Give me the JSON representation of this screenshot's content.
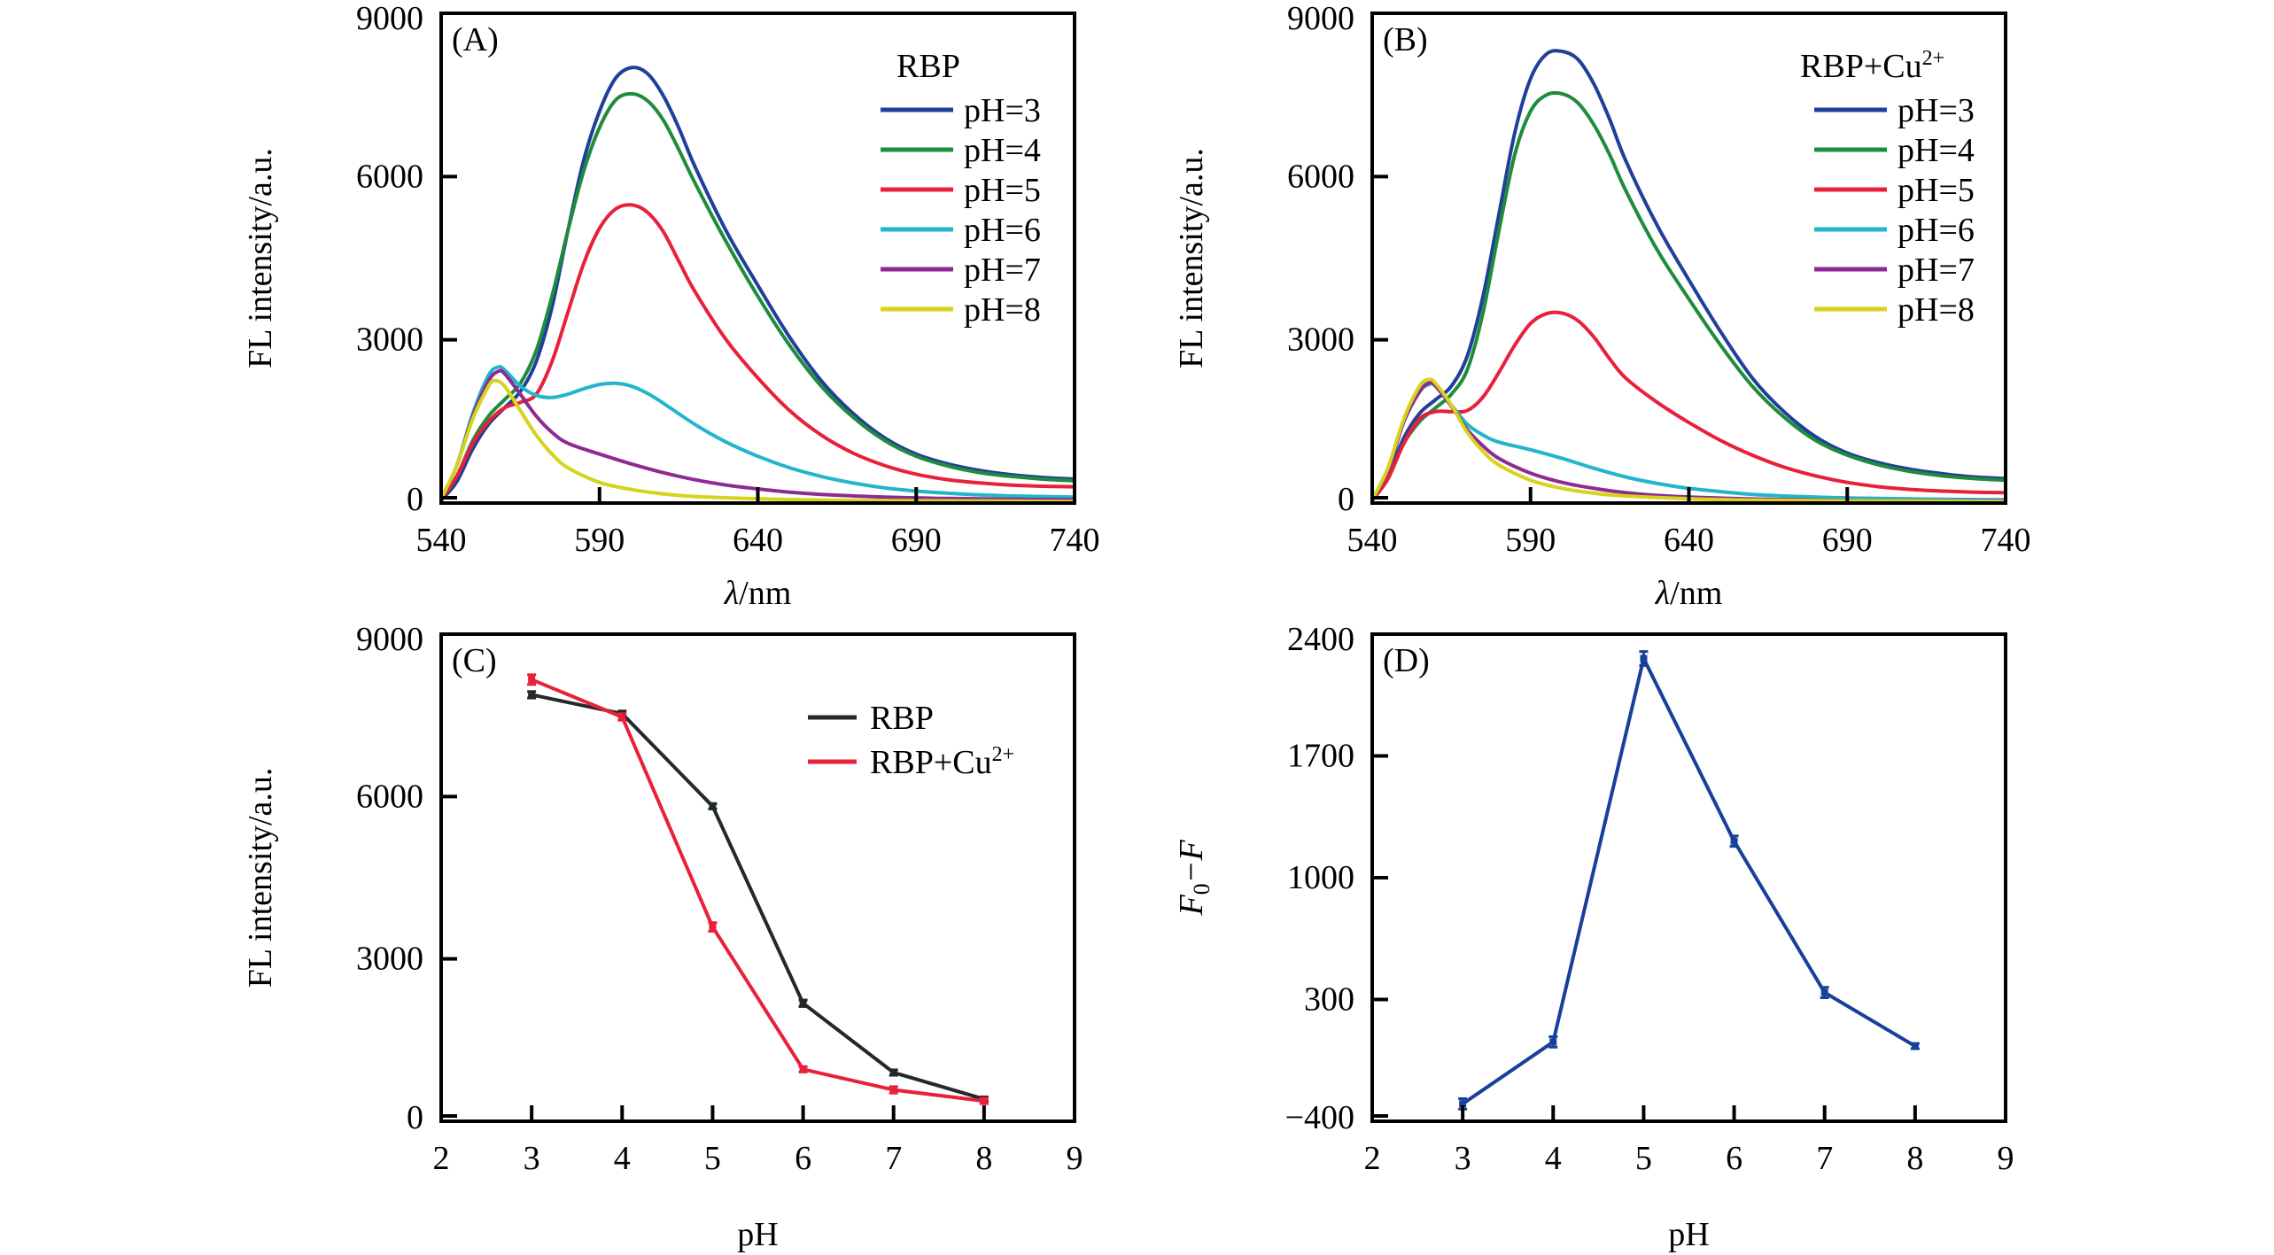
{
  "figure": {
    "panels": [
      "A",
      "B",
      "C",
      "D"
    ]
  },
  "chart_data": [
    {
      "id": "A",
      "type": "line",
      "panel_label": "(A)",
      "legend_title": "RBP",
      "xlabel": "λ/nm",
      "ylabel": "FL intensity/a.u.",
      "xlim": [
        540,
        740
      ],
      "ylim": [
        0,
        9000
      ],
      "xticks": [
        540,
        590,
        640,
        690,
        740
      ],
      "yticks": [
        0,
        3000,
        6000,
        9000
      ],
      "grid": false,
      "legend_position": "top-right",
      "series": [
        {
          "name": "pH=3",
          "color": "#1f3f99",
          "x": [
            540,
            545,
            550,
            555,
            560,
            565,
            570,
            575,
            580,
            585,
            590,
            595,
            600,
            605,
            610,
            615,
            620,
            630,
            640,
            650,
            660,
            670,
            680,
            690,
            700,
            710,
            720,
            730,
            740
          ],
          "y": [
            50,
            400,
            1000,
            1450,
            1750,
            2050,
            2600,
            3600,
            5000,
            6300,
            7200,
            7800,
            8000,
            7900,
            7500,
            6900,
            6200,
            5000,
            4000,
            3050,
            2250,
            1650,
            1200,
            900,
            720,
            600,
            520,
            470,
            440
          ]
        },
        {
          "name": "pH=4",
          "color": "#1f8c3b",
          "x": [
            540,
            545,
            550,
            555,
            560,
            565,
            570,
            575,
            580,
            585,
            590,
            595,
            600,
            605,
            610,
            615,
            620,
            630,
            640,
            650,
            660,
            670,
            680,
            690,
            700,
            710,
            720,
            730,
            740
          ],
          "y": [
            60,
            500,
            1150,
            1600,
            1900,
            2200,
            2800,
            3800,
            5000,
            6100,
            6900,
            7400,
            7520,
            7400,
            7050,
            6500,
            5900,
            4800,
            3800,
            2900,
            2150,
            1580,
            1150,
            860,
            680,
            560,
            490,
            440,
            410
          ]
        },
        {
          "name": "pH=5",
          "color": "#e8203a",
          "x": [
            540,
            545,
            550,
            555,
            560,
            565,
            570,
            575,
            580,
            585,
            590,
            595,
            600,
            605,
            610,
            615,
            620,
            630,
            640,
            650,
            660,
            670,
            680,
            690,
            700,
            710,
            720,
            730,
            740
          ],
          "y": [
            60,
            500,
            1100,
            1500,
            1750,
            1850,
            2000,
            2600,
            3500,
            4400,
            5050,
            5400,
            5480,
            5350,
            5000,
            4450,
            3900,
            3000,
            2300,
            1700,
            1250,
            920,
            690,
            530,
            430,
            370,
            330,
            310,
            300
          ]
        },
        {
          "name": "pH=6",
          "color": "#22b5cc",
          "x": [
            540,
            545,
            550,
            555,
            558,
            560,
            565,
            570,
            575,
            580,
            585,
            590,
            595,
            600,
            605,
            610,
            620,
            630,
            640,
            650,
            660,
            670,
            680,
            690,
            700,
            710,
            720,
            730,
            740
          ],
          "y": [
            80,
            700,
            1650,
            2350,
            2500,
            2450,
            2150,
            1980,
            1940,
            2000,
            2100,
            2180,
            2200,
            2150,
            2020,
            1840,
            1450,
            1120,
            860,
            650,
            490,
            370,
            280,
            220,
            180,
            150,
            130,
            120,
            110
          ]
        },
        {
          "name": "pH=7",
          "color": "#8e2a93",
          "x": [
            540,
            545,
            550,
            555,
            558,
            560,
            565,
            570,
            575,
            580,
            590,
            600,
            610,
            620,
            630,
            640,
            650,
            660,
            680,
            700,
            720,
            740
          ],
          "y": [
            80,
            700,
            1600,
            2250,
            2420,
            2380,
            2000,
            1600,
            1300,
            1100,
            900,
            720,
            560,
            430,
            330,
            260,
            200,
            160,
            110,
            85,
            70,
            60
          ]
        },
        {
          "name": "pH=8",
          "color": "#d6d41a",
          "x": [
            540,
            545,
            550,
            555,
            557,
            560,
            565,
            570,
            575,
            580,
            590,
            600,
            610,
            620,
            640,
            660,
            680,
            700,
            720,
            740
          ],
          "y": [
            80,
            700,
            1550,
            2150,
            2250,
            2150,
            1700,
            1250,
            900,
            650,
            380,
            250,
            170,
            120,
            80,
            55,
            45,
            40,
            35,
            30
          ]
        }
      ]
    },
    {
      "id": "B",
      "type": "line",
      "panel_label": "(B)",
      "legend_title": "RBP+Cu",
      "legend_title_sup": "2+",
      "xlabel": "λ/nm",
      "ylabel": "FL intensity/a.u.",
      "xlim": [
        540,
        740
      ],
      "ylim": [
        0,
        9000
      ],
      "xticks": [
        540,
        590,
        640,
        690,
        740
      ],
      "yticks": [
        0,
        3000,
        6000,
        9000
      ],
      "grid": false,
      "legend_position": "top-right",
      "series": [
        {
          "name": "pH=3",
          "color": "#1f3f99",
          "x": [
            540,
            545,
            550,
            555,
            560,
            565,
            570,
            575,
            580,
            585,
            590,
            595,
            600,
            605,
            610,
            615,
            620,
            630,
            640,
            650,
            660,
            670,
            680,
            690,
            700,
            710,
            720,
            730,
            740
          ],
          "y": [
            50,
            500,
            1200,
            1650,
            1900,
            2150,
            2700,
            3800,
            5300,
            6800,
            7800,
            8250,
            8300,
            8150,
            7700,
            7050,
            6300,
            5100,
            4100,
            3150,
            2300,
            1680,
            1220,
            920,
            740,
            620,
            540,
            480,
            450
          ]
        },
        {
          "name": "pH=4",
          "color": "#1f8c3b",
          "x": [
            540,
            545,
            550,
            555,
            560,
            565,
            570,
            575,
            580,
            585,
            590,
            595,
            600,
            605,
            610,
            615,
            620,
            630,
            640,
            650,
            660,
            670,
            680,
            690,
            700,
            710,
            720,
            730,
            740
          ],
          "y": [
            50,
            450,
            1100,
            1500,
            1750,
            2000,
            2450,
            3500,
            5000,
            6400,
            7200,
            7500,
            7520,
            7350,
            6950,
            6400,
            5750,
            4650,
            3750,
            2900,
            2150,
            1580,
            1150,
            880,
            700,
            580,
            500,
            450,
            420
          ]
        },
        {
          "name": "pH=5",
          "color": "#e8203a",
          "x": [
            540,
            545,
            550,
            555,
            560,
            565,
            570,
            575,
            580,
            585,
            590,
            595,
            600,
            605,
            610,
            615,
            620,
            630,
            640,
            650,
            660,
            670,
            680,
            690,
            700,
            710,
            720,
            730,
            740
          ],
          "y": [
            50,
            450,
            1100,
            1550,
            1680,
            1680,
            1700,
            1950,
            2400,
            2900,
            3300,
            3480,
            3490,
            3350,
            3050,
            2650,
            2300,
            1850,
            1480,
            1150,
            880,
            660,
            500,
            380,
            300,
            250,
            220,
            200,
            190
          ]
        },
        {
          "name": "pH=6",
          "color": "#22b5cc",
          "x": [
            540,
            545,
            550,
            555,
            558,
            560,
            565,
            570,
            575,
            580,
            590,
            600,
            610,
            620,
            630,
            640,
            650,
            660,
            680,
            700,
            720,
            740
          ],
          "y": [
            60,
            600,
            1500,
            2050,
            2180,
            2150,
            1800,
            1450,
            1250,
            1120,
            980,
            820,
            640,
            480,
            360,
            270,
            210,
            160,
            110,
            85,
            70,
            60
          ]
        },
        {
          "name": "pH=7",
          "color": "#8e2a93",
          "x": [
            540,
            545,
            550,
            555,
            558,
            560,
            565,
            570,
            575,
            580,
            590,
            600,
            610,
            620,
            630,
            640,
            660,
            680,
            700,
            720,
            740
          ],
          "y": [
            60,
            600,
            1500,
            2050,
            2210,
            2150,
            1780,
            1350,
            1050,
            820,
            550,
            380,
            270,
            190,
            140,
            110,
            75,
            55,
            45,
            40,
            35
          ]
        },
        {
          "name": "pH=8",
          "color": "#d6d41a",
          "x": [
            540,
            545,
            550,
            555,
            558,
            560,
            565,
            570,
            575,
            580,
            590,
            600,
            610,
            620,
            640,
            660,
            680,
            700,
            720,
            740
          ],
          "y": [
            60,
            650,
            1550,
            2150,
            2270,
            2200,
            1800,
            1300,
            950,
            700,
            420,
            270,
            180,
            130,
            80,
            55,
            45,
            40,
            35,
            30
          ]
        }
      ]
    },
    {
      "id": "C",
      "type": "line",
      "panel_label": "(C)",
      "xlabel": "pH",
      "ylabel": "FL intensity/a.u.",
      "xlim": [
        2,
        9
      ],
      "ylim": [
        0,
        9000
      ],
      "xticks": [
        2,
        3,
        4,
        5,
        6,
        7,
        8,
        9
      ],
      "yticks": [
        0,
        3000,
        6000,
        9000
      ],
      "grid": false,
      "legend_position": "top-right",
      "x": [
        3,
        4,
        5,
        6,
        7,
        8
      ],
      "series": [
        {
          "name": "RBP",
          "color": "#22282b",
          "values": [
            7880,
            7530,
            5820,
            2180,
            900,
            410
          ],
          "error": [
            60,
            50,
            50,
            60,
            50,
            40
          ]
        },
        {
          "name": "RBP+Cu",
          "name_sup": "2+",
          "color": "#e8203a",
          "values": [
            8160,
            7470,
            3590,
            960,
            580,
            375
          ],
          "error": [
            90,
            60,
            80,
            50,
            60,
            50
          ]
        }
      ]
    },
    {
      "id": "D",
      "type": "line",
      "panel_label": "(D)",
      "xlabel": "pH",
      "ylabel_main": "F",
      "ylabel_sub": "0",
      "ylabel_rest": "−F",
      "xlim": [
        2,
        9
      ],
      "ylim": [
        -400,
        2400
      ],
      "xticks": [
        2,
        3,
        4,
        5,
        6,
        7,
        8,
        9
      ],
      "yticks": [
        -400,
        300,
        1000,
        1700,
        2400
      ],
      "ytick_labels": [
        "−400",
        "300",
        "1000",
        "1700",
        "2400"
      ],
      "grid": false,
      "x": [
        3,
        4,
        5,
        6,
        7,
        8
      ],
      "series": [
        {
          "name": "F0−F",
          "color": "#173f9b",
          "values": [
            -300,
            56,
            2260,
            1210,
            340,
            32
          ],
          "error": [
            30,
            30,
            40,
            30,
            30,
            15
          ]
        }
      ]
    }
  ]
}
